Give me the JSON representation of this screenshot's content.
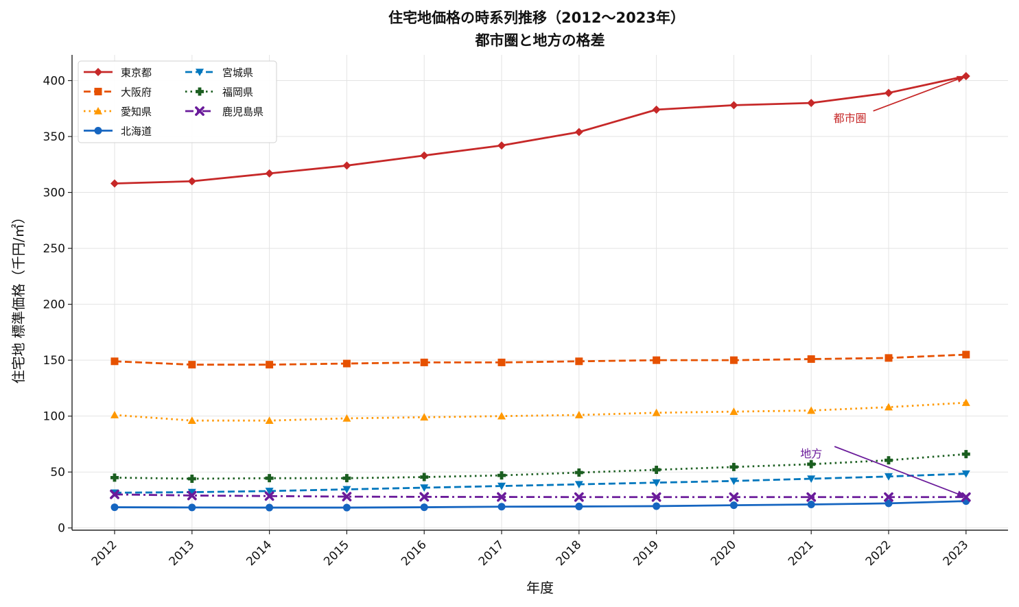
{
  "chart_data": {
    "type": "line",
    "title": "住宅地価格の時系列推移（2012〜2023年）",
    "subtitle": "都市圏と地方の格差",
    "xlabel": "年度",
    "ylabel": "住宅地 標準価格（千円/㎡）",
    "x": [
      "2012",
      "2013",
      "2014",
      "2015",
      "2016",
      "2017",
      "2018",
      "2019",
      "2020",
      "2021",
      "2022",
      "2023"
    ],
    "ylim": [
      -2,
      423
    ],
    "yticks": [
      0,
      50,
      100,
      150,
      200,
      250,
      300,
      350,
      400
    ],
    "grid": true,
    "legend_position": "top-left",
    "series": [
      {
        "name": "東京都",
        "color": "#c62828",
        "dash": "solid",
        "marker": "diamond",
        "values": [
          308,
          310,
          317,
          324,
          333,
          342,
          354,
          374,
          378,
          380,
          389,
          404
        ]
      },
      {
        "name": "大阪府",
        "color": "#e65100",
        "dash": "dashed",
        "marker": "square",
        "values": [
          149,
          146,
          146,
          147,
          148,
          148,
          149,
          150,
          150,
          151,
          152,
          155
        ]
      },
      {
        "name": "愛知県",
        "color": "#ff9800",
        "dash": "dotted",
        "marker": "triangle-up",
        "values": [
          101,
          96,
          96,
          98,
          99,
          100,
          101,
          103,
          104,
          105,
          108,
          112
        ]
      },
      {
        "name": "北海道",
        "color": "#1565c0",
        "dash": "solid",
        "marker": "circle",
        "values": [
          18.5,
          18.3,
          18.2,
          18.2,
          18.5,
          19,
          19.2,
          19.5,
          20.3,
          21,
          22,
          24
        ]
      },
      {
        "name": "宮城県",
        "color": "#0277bd",
        "dash": "dashed",
        "marker": "triangle-down",
        "values": [
          31.5,
          32,
          33,
          34.5,
          36,
          37.5,
          39,
          40.5,
          42,
          44,
          46,
          48.5
        ]
      },
      {
        "name": "福岡県",
        "color": "#1b5e20",
        "dash": "dotted",
        "marker": "plus",
        "values": [
          45,
          44,
          44.5,
          44.5,
          45.5,
          47,
          49.5,
          52,
          54.5,
          57,
          60.5,
          66
        ]
      },
      {
        "name": "鹿児島県",
        "color": "#6a1b9a",
        "dash": "dashdot",
        "marker": "x",
        "values": [
          30,
          29,
          28.5,
          28,
          27.8,
          27.7,
          27.6,
          27.6,
          27.6,
          27.6,
          27.6,
          27.6
        ]
      }
    ],
    "annotations": [
      {
        "text": "都市圏",
        "color": "#c62828",
        "target_x": "2023",
        "target_y": 404,
        "text_x": 2021.5,
        "text_y": 363
      },
      {
        "text": "地方",
        "color": "#6a1b9a",
        "target_x": "2023",
        "target_y": 27.6,
        "text_x": 2021,
        "text_y": 63
      }
    ]
  }
}
